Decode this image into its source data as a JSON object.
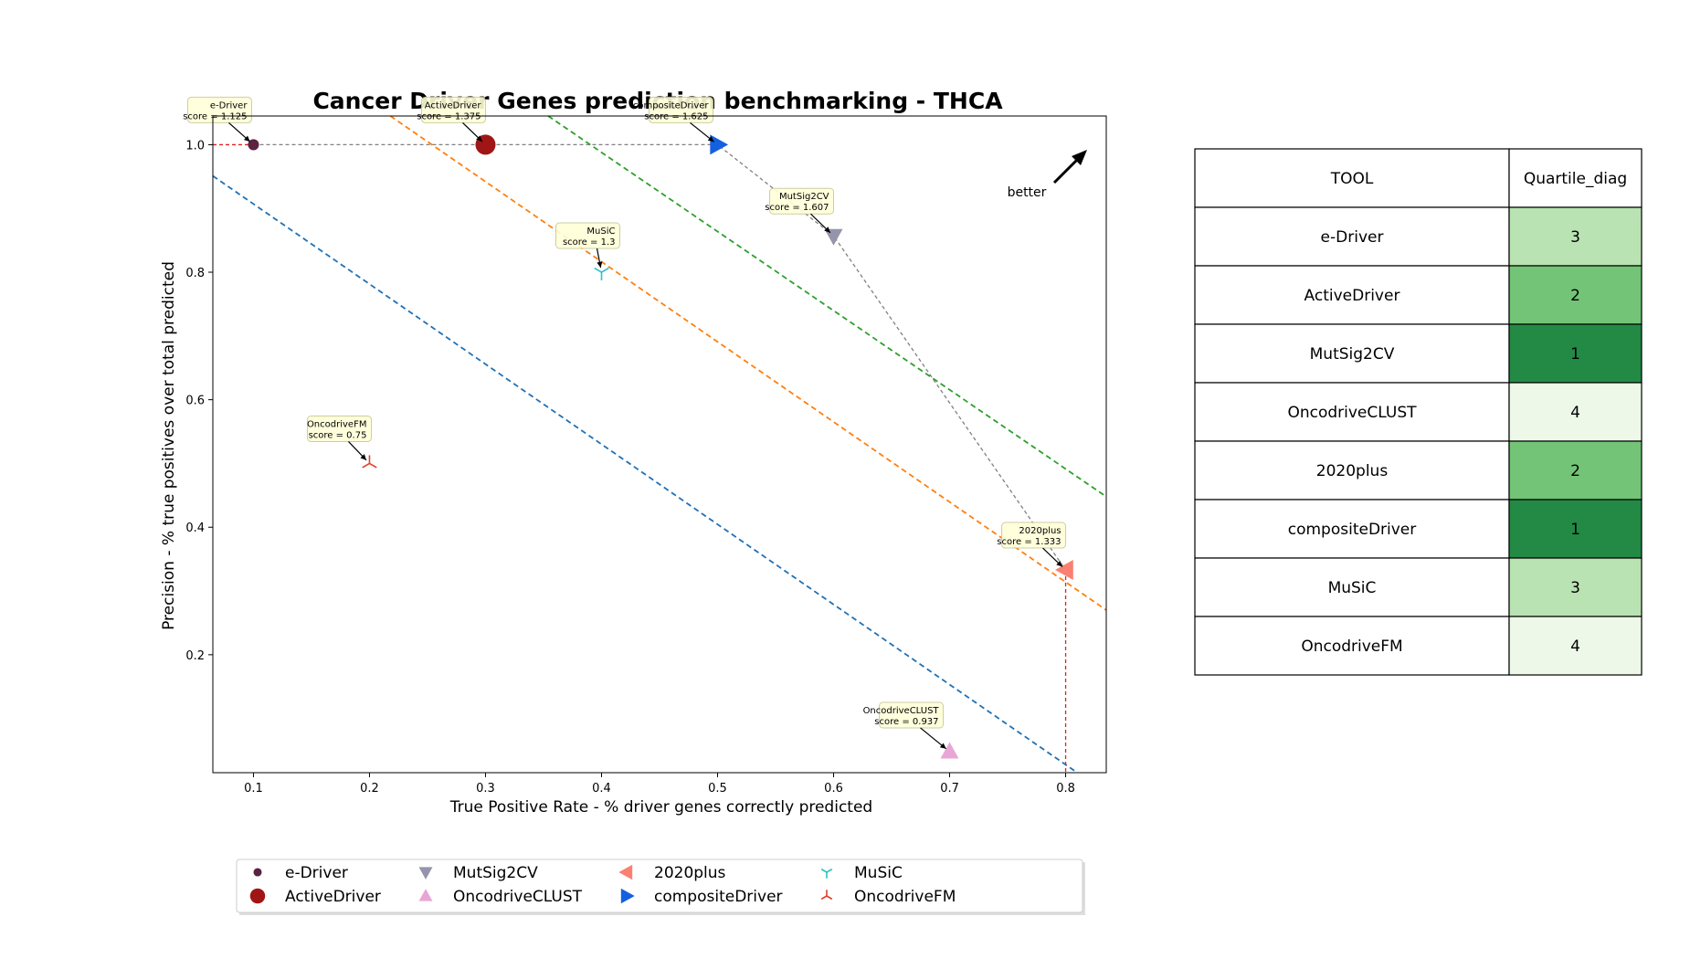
{
  "chart_data": {
    "type": "scatter",
    "title": "Cancer Driver Genes prediction benchmarking - THCA",
    "xlabel": "True Positive Rate - % driver genes correctly predicted",
    "ylabel": "Precision - % true positives over total predicted",
    "xlim": [
      0.065,
      0.835
    ],
    "ylim": [
      0.015,
      1.045
    ],
    "xticks": [
      0.1,
      0.2,
      0.3,
      0.4,
      0.5,
      0.6,
      0.7,
      0.8
    ],
    "yticks": [
      0.2,
      0.4,
      0.6,
      0.8,
      1.0
    ],
    "xtick_labels": [
      "0.1",
      "0.2",
      "0.3",
      "0.4",
      "0.5",
      "0.6",
      "0.7",
      "0.8"
    ],
    "ytick_labels": [
      "0.2",
      "0.4",
      "0.6",
      "0.8",
      "1.0"
    ],
    "grid": false,
    "legend_position": "bottom",
    "series": [
      {
        "name": "e-Driver",
        "x": 0.1,
        "y": 1.0,
        "score_label": "score = 1.125",
        "marker": "circle-small",
        "color": "#5a2341"
      },
      {
        "name": "ActiveDriver",
        "x": 0.3,
        "y": 1.0,
        "score_label": "score = 1.375",
        "marker": "circle",
        "color": "#a01616"
      },
      {
        "name": "MutSig2CV",
        "x": 0.6,
        "y": 0.857,
        "score_label": "score = 1.607",
        "marker": "triangle-down",
        "color": "#9494ac"
      },
      {
        "name": "OncodriveCLUST",
        "x": 0.7,
        "y": 0.048,
        "score_label": "score = 0.937",
        "marker": "triangle-up",
        "color": "#e8a6d6"
      },
      {
        "name": "2020plus",
        "x": 0.8,
        "y": 0.333,
        "score_label": "score = 1.333",
        "marker": "triangle-left",
        "color": "#fa8072"
      },
      {
        "name": "compositeDriver",
        "x": 0.5,
        "y": 1.0,
        "score_label": "score = 1.625",
        "marker": "triangle-right",
        "color": "#1560e0"
      },
      {
        "name": "MuSiC",
        "x": 0.4,
        "y": 0.8,
        "score_label": "score = 1.3",
        "marker": "tri-down",
        "color": "#2ac4c4"
      },
      {
        "name": "OncodriveFM",
        "x": 0.2,
        "y": 0.5,
        "score_label": "score = 0.75",
        "marker": "tri-up",
        "color": "#e0402a"
      }
    ],
    "pareto_front": [
      [
        0.1,
        1.0
      ],
      [
        0.5,
        1.0
      ],
      [
        0.6,
        0.857
      ],
      [
        0.8,
        0.333
      ]
    ],
    "quartile_lines": [
      {
        "color": "#2070b4",
        "points": [
          [
            0.065,
            0.951
          ],
          [
            0.81,
            0.015
          ]
        ]
      },
      {
        "color": "#ff7f0e",
        "points": [
          [
            0.218,
            1.045
          ],
          [
            0.835,
            0.27
          ]
        ]
      },
      {
        "color": "#2ca02c",
        "points": [
          [
            0.354,
            1.045
          ],
          [
            0.835,
            0.448
          ]
        ]
      }
    ],
    "better_label": "better",
    "table": {
      "columns": [
        "TOOL",
        "Quartile_diag"
      ],
      "rows": [
        {
          "tool": "e-Driver",
          "quartile": "3",
          "color": "#b9e3b2"
        },
        {
          "tool": "ActiveDriver",
          "quartile": "2",
          "color": "#73c476"
        },
        {
          "tool": "MutSig2CV",
          "quartile": "1",
          "color": "#228a44"
        },
        {
          "tool": "OncodriveCLUST",
          "quartile": "4",
          "color": "#edf8e9"
        },
        {
          "tool": "2020plus",
          "quartile": "2",
          "color": "#73c476"
        },
        {
          "tool": "compositeDriver",
          "quartile": "1",
          "color": "#228a44"
        },
        {
          "tool": "MuSiC",
          "quartile": "3",
          "color": "#b9e3b2"
        },
        {
          "tool": "OncodriveFM",
          "quartile": "4",
          "color": "#edf8e9"
        }
      ]
    }
  }
}
